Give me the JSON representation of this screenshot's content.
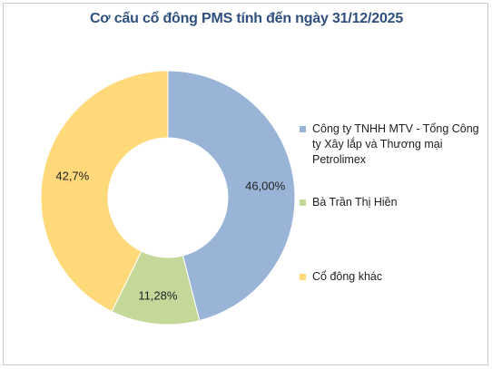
{
  "chart_data": {
    "type": "pie",
    "title": "Cơ cấu cổ đông PMS tính đến ngày 31/12/2025",
    "categories": [
      "Công ty TNHH MTV - Tổng Công ty Xây lắp và Thương mại Petrolimex",
      "Bà Trần Thị Hiền",
      "Cổ đông khác"
    ],
    "values": [
      46.0,
      11.28,
      42.72
    ],
    "labels": [
      "46,00%",
      "11,28%",
      "42,7%"
    ],
    "colors": [
      "#9ab4d8",
      "#c4d89a",
      "#ffd97a"
    ],
    "donut": true,
    "legend_position": "right"
  }
}
